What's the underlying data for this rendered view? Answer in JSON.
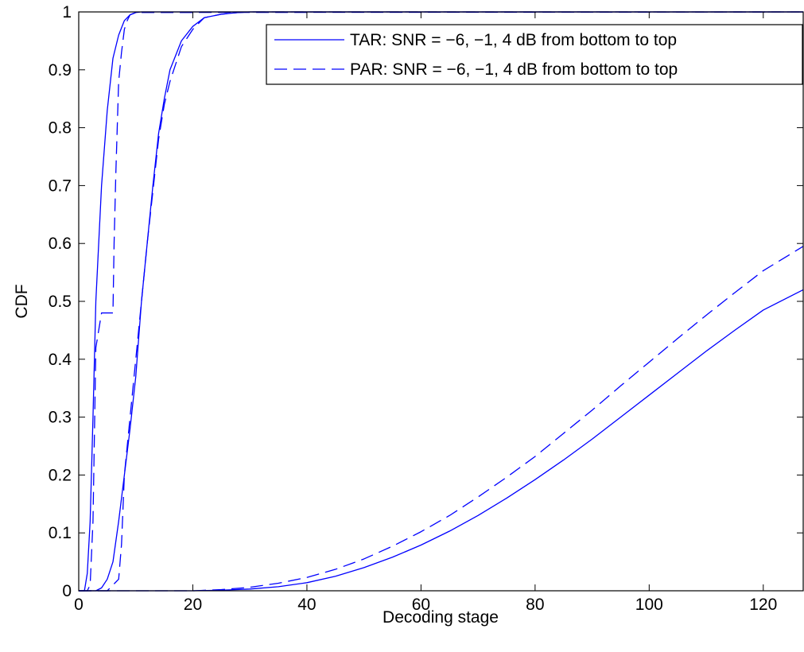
{
  "chart_data": {
    "type": "line",
    "xlabel": "Decoding stage",
    "ylabel": "CDF",
    "xlim": [
      0,
      127
    ],
    "ylim": [
      0,
      1
    ],
    "xticks": [
      "0",
      "20",
      "40",
      "60",
      "80",
      "100",
      "120"
    ],
    "yticks": [
      "0",
      "0.1",
      "0.2",
      "0.3",
      "0.4",
      "0.5",
      "0.6",
      "0.7",
      "0.8",
      "0.9",
      "1"
    ],
    "grid": false,
    "legend_position": "top-right",
    "line_color": "#0000ff",
    "legend": [
      {
        "text": "TAR: SNR = −6, −1, 4 dB from bottom to top",
        "style": "solid"
      },
      {
        "text": "PAR: SNR = −6, −1, 4 dB from bottom to top",
        "style": "dashed"
      }
    ],
    "series": [
      {
        "style": "solid",
        "x": [
          0,
          1,
          1.5,
          2,
          2.5,
          3,
          4,
          5,
          6,
          7,
          8,
          9,
          10,
          11,
          12,
          127
        ],
        "y": [
          0,
          0,
          0.03,
          0.12,
          0.3,
          0.5,
          0.7,
          0.83,
          0.92,
          0.96,
          0.985,
          0.995,
          0.999,
          1,
          1,
          1
        ]
      },
      {
        "style": "dashed",
        "x": [
          0,
          1.5,
          2,
          2.5,
          3,
          3.5,
          4,
          5,
          6,
          6.2,
          6.5,
          7,
          7.5,
          8,
          8.5,
          9,
          10,
          127
        ],
        "y": [
          0,
          0,
          0.01,
          0.12,
          0.42,
          0.45,
          0.48,
          0.48,
          0.48,
          0.6,
          0.72,
          0.88,
          0.93,
          0.97,
          0.985,
          0.995,
          0.999,
          1
        ]
      },
      {
        "style": "solid",
        "x": [
          0,
          3,
          4,
          5,
          6,
          7,
          8,
          9,
          10,
          11,
          12,
          13,
          14,
          15,
          16,
          18,
          20,
          22,
          25,
          28,
          30,
          35,
          127
        ],
        "y": [
          0,
          0,
          0.005,
          0.02,
          0.05,
          0.12,
          0.2,
          0.28,
          0.37,
          0.5,
          0.6,
          0.7,
          0.79,
          0.85,
          0.9,
          0.95,
          0.975,
          0.99,
          0.996,
          0.999,
          1,
          1,
          1
        ]
      },
      {
        "style": "dashed",
        "x": [
          0,
          5,
          6,
          7,
          7.5,
          8,
          9,
          10,
          11,
          12,
          13,
          14,
          15,
          16,
          18,
          20,
          22,
          25,
          28,
          30,
          127
        ],
        "y": [
          0,
          0,
          0.01,
          0.02,
          0.08,
          0.2,
          0.3,
          0.4,
          0.5,
          0.6,
          0.69,
          0.78,
          0.84,
          0.88,
          0.94,
          0.97,
          0.99,
          0.996,
          0.999,
          1,
          1
        ]
      },
      {
        "style": "solid",
        "x": [
          0,
          20,
          25,
          30,
          35,
          40,
          45,
          50,
          55,
          60,
          65,
          70,
          75,
          80,
          85,
          90,
          95,
          100,
          105,
          110,
          115,
          120,
          127
        ],
        "y": [
          0,
          0,
          0.001,
          0.003,
          0.007,
          0.014,
          0.025,
          0.04,
          0.058,
          0.079,
          0.103,
          0.13,
          0.16,
          0.192,
          0.226,
          0.262,
          0.3,
          0.338,
          0.376,
          0.414,
          0.45,
          0.485,
          0.52
        ]
      },
      {
        "style": "dashed",
        "x": [
          0,
          20,
          25,
          30,
          35,
          40,
          45,
          50,
          55,
          60,
          65,
          70,
          75,
          80,
          85,
          90,
          95,
          100,
          105,
          110,
          115,
          120,
          127
        ],
        "y": [
          0,
          0,
          0.002,
          0.006,
          0.013,
          0.023,
          0.037,
          0.055,
          0.077,
          0.102,
          0.13,
          0.162,
          0.196,
          0.232,
          0.272,
          0.312,
          0.354,
          0.395,
          0.436,
          0.476,
          0.515,
          0.553,
          0.595
        ]
      }
    ]
  }
}
